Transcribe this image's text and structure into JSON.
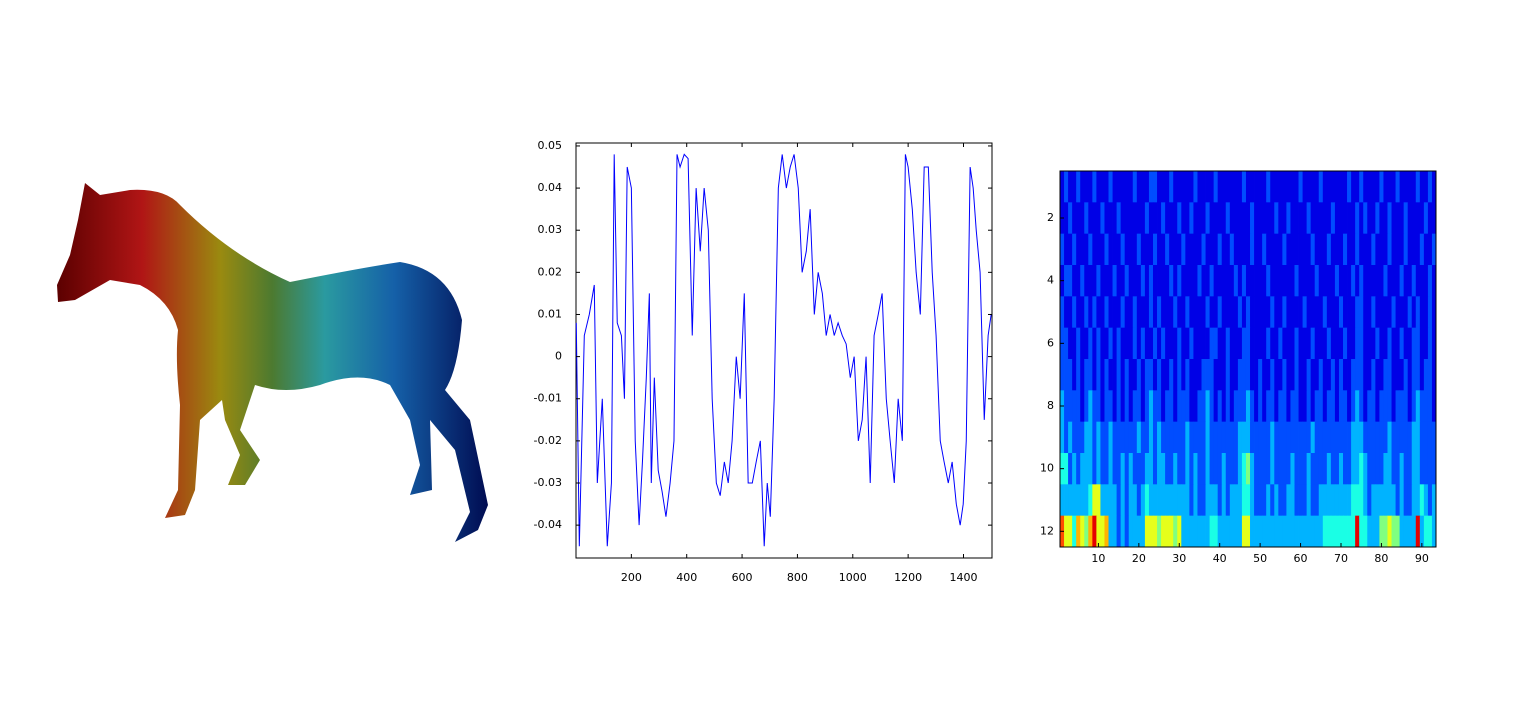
{
  "chart_data": [
    {
      "type": "line",
      "x": [
        1,
        12,
        30,
        48,
        66,
        77,
        95,
        113,
        128,
        138,
        149,
        164,
        175,
        185,
        200,
        214,
        228,
        240,
        254,
        265,
        272,
        283,
        297,
        311,
        325,
        340,
        354,
        365,
        376,
        391,
        405,
        420,
        434,
        449,
        463,
        478,
        492,
        507,
        521,
        536,
        550,
        564,
        579,
        593,
        608,
        622,
        637,
        651,
        666,
        680,
        691,
        702,
        716,
        731,
        745,
        760,
        774,
        788,
        803,
        817,
        832,
        846,
        861,
        875,
        890,
        904,
        918,
        933,
        947,
        962,
        976,
        991,
        1005,
        1020,
        1034,
        1048,
        1063,
        1077,
        1092,
        1106,
        1121,
        1135,
        1150,
        1164,
        1179,
        1190,
        1200,
        1215,
        1229,
        1244,
        1258,
        1273,
        1287,
        1301,
        1316,
        1330,
        1345,
        1359,
        1374,
        1388,
        1399,
        1410,
        1424,
        1435,
        1446,
        1460,
        1475,
        1489,
        1500
      ],
      "values": [
        0.008,
        -0.045,
        0.005,
        0.01,
        0.017,
        -0.03,
        -0.01,
        -0.045,
        -0.03,
        0.048,
        0.008,
        0.005,
        -0.01,
        0.045,
        0.04,
        -0.02,
        -0.04,
        -0.025,
        -0.005,
        0.015,
        -0.03,
        -0.005,
        -0.027,
        -0.032,
        -0.038,
        -0.03,
        -0.02,
        0.048,
        0.045,
        0.048,
        0.047,
        0.005,
        0.04,
        0.025,
        0.04,
        0.03,
        -0.01,
        -0.03,
        -0.033,
        -0.025,
        -0.03,
        -0.02,
        0.0,
        -0.01,
        0.015,
        -0.03,
        -0.03,
        -0.025,
        -0.02,
        -0.045,
        -0.03,
        -0.038,
        -0.01,
        0.04,
        0.048,
        0.04,
        0.045,
        0.048,
        0.04,
        0.02,
        0.025,
        0.035,
        0.01,
        0.02,
        0.015,
        0.005,
        0.01,
        0.005,
        0.008,
        0.005,
        0.003,
        -0.005,
        0.0,
        -0.02,
        -0.015,
        0.0,
        -0.03,
        0.005,
        0.01,
        0.015,
        -0.01,
        -0.02,
        -0.03,
        -0.01,
        -0.02,
        0.048,
        0.045,
        0.035,
        0.02,
        0.01,
        0.045,
        0.045,
        0.02,
        0.005,
        -0.02,
        -0.025,
        -0.03,
        -0.025,
        -0.035,
        -0.04,
        -0.035,
        -0.02,
        0.045,
        0.04,
        0.03,
        0.02,
        -0.015,
        0.005,
        0.01
      ],
      "color": "#0000ff",
      "xlim": [
        0,
        1503
      ],
      "ylim": [
        -0.0478,
        0.0507
      ],
      "xticks": [
        200,
        400,
        600,
        800,
        1000,
        1200,
        1400
      ],
      "yticks": [
        -0.04,
        -0.03,
        -0.02,
        -0.01,
        0,
        0.01,
        0.02,
        0.03,
        0.04,
        0.05
      ]
    },
    {
      "type": "heatmap",
      "colormap": "jet",
      "clim": [
        0,
        10
      ],
      "xlim": [
        0.5,
        93.5
      ],
      "ylim": [
        12.5,
        0.5
      ],
      "xticks": [
        10,
        20,
        30,
        40,
        50,
        60,
        70,
        80,
        90
      ],
      "yticks": [
        2,
        4,
        6,
        8,
        10,
        12
      ],
      "values": [
        [
          1,
          2,
          1,
          1,
          2,
          1,
          1,
          1,
          2,
          1,
          1,
          1,
          2,
          1,
          1,
          1,
          1,
          1,
          2,
          1,
          1,
          1,
          2,
          2,
          1,
          1,
          1,
          2,
          1,
          1,
          1,
          1,
          1,
          2,
          1,
          1,
          1,
          1,
          2,
          1,
          1,
          1,
          1,
          1,
          1,
          2,
          1,
          1,
          1,
          1,
          1,
          2,
          1,
          1,
          1,
          1,
          1,
          1,
          1,
          2,
          1,
          1,
          1,
          1,
          2,
          1,
          1,
          1,
          1,
          1,
          1,
          2,
          1,
          1,
          2,
          1,
          1,
          1,
          1,
          2,
          1,
          1,
          1,
          2,
          1,
          1,
          1,
          1,
          2,
          1,
          1,
          2,
          1
        ],
        [
          1,
          1,
          2,
          1,
          1,
          1,
          2,
          1,
          1,
          1,
          2,
          1,
          1,
          1,
          2,
          1,
          1,
          1,
          1,
          1,
          1,
          2,
          1,
          1,
          1,
          2,
          1,
          1,
          1,
          2,
          1,
          1,
          2,
          1,
          1,
          1,
          2,
          1,
          1,
          1,
          1,
          2,
          1,
          1,
          1,
          1,
          1,
          2,
          1,
          1,
          1,
          1,
          1,
          2,
          1,
          1,
          2,
          1,
          1,
          1,
          1,
          2,
          1,
          1,
          1,
          1,
          1,
          2,
          1,
          1,
          1,
          1,
          1,
          2,
          1,
          2,
          1,
          1,
          2,
          1,
          1,
          2,
          1,
          1,
          1,
          2,
          1,
          1,
          1,
          1,
          2,
          1,
          1
        ],
        [
          2,
          1,
          1,
          2,
          1,
          1,
          1,
          2,
          1,
          1,
          1,
          2,
          1,
          1,
          1,
          2,
          1,
          1,
          1,
          2,
          1,
          1,
          1,
          2,
          1,
          1,
          2,
          1,
          1,
          1,
          2,
          1,
          1,
          1,
          1,
          2,
          1,
          1,
          1,
          2,
          1,
          1,
          2,
          1,
          1,
          1,
          1,
          2,
          1,
          1,
          2,
          1,
          1,
          1,
          1,
          2,
          1,
          1,
          1,
          1,
          1,
          1,
          2,
          1,
          1,
          1,
          2,
          1,
          1,
          1,
          2,
          1,
          1,
          2,
          1,
          1,
          1,
          2,
          1,
          1,
          1,
          2,
          1,
          1,
          1,
          2,
          1,
          1,
          1,
          2,
          1,
          1,
          2
        ],
        [
          1,
          2,
          2,
          1,
          1,
          2,
          1,
          1,
          1,
          2,
          1,
          1,
          1,
          2,
          1,
          1,
          2,
          1,
          1,
          1,
          2,
          1,
          2,
          1,
          1,
          1,
          1,
          2,
          1,
          2,
          1,
          1,
          1,
          1,
          2,
          1,
          1,
          2,
          1,
          1,
          1,
          1,
          1,
          2,
          1,
          2,
          1,
          1,
          1,
          1,
          1,
          2,
          1,
          1,
          1,
          1,
          1,
          1,
          2,
          1,
          1,
          1,
          1,
          2,
          1,
          1,
          1,
          1,
          2,
          1,
          1,
          1,
          2,
          1,
          2,
          1,
          1,
          1,
          1,
          1,
          2,
          1,
          1,
          1,
          2,
          1,
          1,
          2,
          1,
          1,
          1,
          2,
          1
        ],
        [
          2,
          1,
          1,
          2,
          1,
          1,
          2,
          1,
          2,
          1,
          1,
          2,
          1,
          1,
          1,
          2,
          1,
          1,
          2,
          1,
          1,
          1,
          2,
          1,
          2,
          1,
          1,
          1,
          2,
          1,
          1,
          2,
          1,
          1,
          1,
          1,
          2,
          1,
          1,
          2,
          1,
          1,
          1,
          1,
          2,
          1,
          2,
          1,
          1,
          1,
          1,
          1,
          2,
          1,
          1,
          2,
          1,
          1,
          1,
          1,
          2,
          1,
          1,
          1,
          1,
          2,
          1,
          1,
          1,
          2,
          1,
          1,
          1,
          2,
          2,
          1,
          1,
          2,
          1,
          1,
          1,
          1,
          2,
          1,
          1,
          1,
          2,
          1,
          2,
          1,
          1,
          2,
          1
        ],
        [
          2,
          2,
          1,
          1,
          2,
          1,
          1,
          2,
          1,
          2,
          1,
          1,
          2,
          1,
          2,
          1,
          1,
          1,
          2,
          1,
          2,
          1,
          1,
          2,
          1,
          2,
          1,
          1,
          1,
          2,
          1,
          1,
          2,
          1,
          1,
          1,
          1,
          2,
          2,
          1,
          1,
          2,
          1,
          1,
          1,
          2,
          2,
          1,
          1,
          1,
          1,
          2,
          1,
          1,
          2,
          1,
          1,
          1,
          2,
          1,
          1,
          1,
          2,
          1,
          1,
          1,
          2,
          1,
          1,
          1,
          2,
          1,
          1,
          2,
          2,
          1,
          1,
          1,
          2,
          1,
          1,
          2,
          1,
          1,
          2,
          1,
          1,
          2,
          2,
          1,
          1,
          2,
          1
        ],
        [
          2,
          2,
          2,
          1,
          2,
          1,
          2,
          2,
          1,
          2,
          1,
          2,
          1,
          1,
          2,
          1,
          2,
          1,
          1,
          2,
          1,
          2,
          2,
          1,
          2,
          1,
          1,
          2,
          1,
          2,
          1,
          2,
          1,
          1,
          1,
          2,
          2,
          2,
          1,
          1,
          1,
          2,
          1,
          1,
          2,
          2,
          2,
          1,
          1,
          2,
          1,
          1,
          2,
          1,
          1,
          2,
          1,
          1,
          2,
          1,
          1,
          2,
          1,
          1,
          2,
          1,
          1,
          2,
          1,
          2,
          1,
          1,
          2,
          2,
          2,
          1,
          1,
          2,
          1,
          1,
          2,
          2,
          1,
          1,
          1,
          2,
          1,
          2,
          2,
          1,
          2,
          2,
          1
        ],
        [
          3,
          2,
          2,
          2,
          2,
          1,
          2,
          3,
          2,
          2,
          1,
          2,
          2,
          1,
          2,
          1,
          2,
          1,
          2,
          2,
          1,
          2,
          3,
          2,
          2,
          1,
          2,
          2,
          1,
          2,
          2,
          2,
          1,
          1,
          2,
          2,
          3,
          2,
          1,
          2,
          1,
          2,
          1,
          2,
          2,
          2,
          3,
          2,
          1,
          2,
          1,
          2,
          2,
          1,
          2,
          2,
          1,
          2,
          2,
          1,
          1,
          2,
          1,
          2,
          2,
          1,
          2,
          2,
          1,
          2,
          2,
          1,
          2,
          3,
          2,
          1,
          2,
          2,
          1,
          2,
          2,
          2,
          1,
          2,
          2,
          2,
          1,
          2,
          3,
          2,
          2,
          2,
          1
        ],
        [
          3,
          2,
          3,
          2,
          2,
          2,
          3,
          3,
          2,
          3,
          2,
          2,
          3,
          2,
          2,
          2,
          2,
          2,
          2,
          3,
          2,
          2,
          3,
          2,
          3,
          2,
          2,
          2,
          2,
          2,
          2,
          3,
          2,
          2,
          2,
          2,
          3,
          2,
          2,
          2,
          2,
          2,
          2,
          2,
          3,
          3,
          3,
          2,
          2,
          2,
          2,
          2,
          3,
          2,
          2,
          2,
          2,
          2,
          2,
          2,
          2,
          2,
          3,
          2,
          2,
          2,
          2,
          2,
          2,
          2,
          2,
          2,
          3,
          3,
          3,
          2,
          2,
          2,
          2,
          2,
          2,
          3,
          2,
          2,
          2,
          2,
          2,
          3,
          3,
          2,
          2,
          2,
          2
        ],
        [
          4,
          4,
          2,
          3,
          2,
          3,
          3,
          3,
          2,
          3,
          2,
          2,
          3,
          2,
          2,
          3,
          2,
          3,
          2,
          2,
          2,
          3,
          3,
          2,
          3,
          3,
          2,
          2,
          3,
          2,
          2,
          3,
          2,
          3,
          2,
          2,
          3,
          2,
          2,
          2,
          3,
          2,
          2,
          2,
          3,
          4,
          5,
          3,
          2,
          2,
          2,
          2,
          3,
          2,
          2,
          2,
          2,
          3,
          2,
          2,
          2,
          3,
          2,
          2,
          2,
          2,
          3,
          2,
          2,
          3,
          2,
          2,
          3,
          3,
          4,
          3,
          2,
          2,
          2,
          2,
          3,
          3,
          2,
          2,
          3,
          2,
          2,
          3,
          3,
          2,
          2,
          2,
          2
        ],
        [
          3,
          3,
          3,
          3,
          3,
          3,
          3,
          4,
          6,
          6,
          3,
          3,
          3,
          3,
          2,
          3,
          2,
          3,
          3,
          2,
          3,
          4,
          3,
          3,
          3,
          3,
          3,
          3,
          3,
          3,
          3,
          3,
          2,
          3,
          2,
          2,
          3,
          3,
          3,
          2,
          3,
          2,
          3,
          3,
          3,
          4,
          4,
          3,
          2,
          2,
          2,
          3,
          2,
          3,
          2,
          2,
          3,
          3,
          2,
          2,
          2,
          3,
          2,
          2,
          3,
          3,
          3,
          3,
          3,
          3,
          3,
          3,
          4,
          4,
          4,
          3,
          2,
          3,
          3,
          3,
          3,
          3,
          3,
          2,
          3,
          2,
          2,
          3,
          3,
          4,
          3,
          2,
          3
        ],
        [
          8,
          6,
          6,
          4,
          7,
          6,
          5,
          7,
          9,
          6,
          6,
          7,
          3,
          3,
          2,
          3,
          2,
          3,
          3,
          3,
          3,
          6,
          6,
          6,
          5,
          6,
          6,
          6,
          5,
          6,
          3,
          3,
          3,
          3,
          3,
          3,
          3,
          4,
          4,
          3,
          3,
          3,
          3,
          3,
          3,
          6,
          6,
          3,
          3,
          3,
          3,
          3,
          3,
          3,
          3,
          3,
          3,
          3,
          3,
          3,
          3,
          3,
          3,
          3,
          3,
          4,
          4,
          4,
          4,
          4,
          4,
          4,
          4,
          9,
          4,
          4,
          3,
          3,
          3,
          5,
          5,
          6,
          5,
          5,
          3,
          3,
          3,
          3,
          9,
          3,
          4,
          4,
          3
        ]
      ]
    }
  ]
}
